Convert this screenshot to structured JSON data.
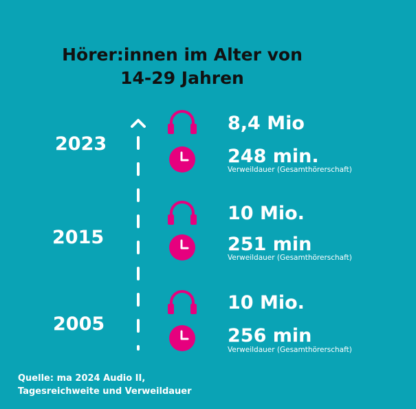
{
  "title": {
    "line1": "Hörer:innen im Alter von",
    "line2": "14-29 Jahren"
  },
  "colors": {
    "background": "#0aa3b5",
    "accent": "#e6007e",
    "text": "#ffffff",
    "title": "#111111"
  },
  "icons": {
    "listeners": "headphones-icon",
    "duration": "clock-icon",
    "timeline": "chevron-up-icon"
  },
  "entries": [
    {
      "year": "2023",
      "listeners": "8,4 Mio",
      "duration": "248 min.",
      "note": "Verweildauer (Gesamthörerschaft)"
    },
    {
      "year": "2015",
      "listeners": "10 Mio.",
      "duration": "251 min",
      "note": "Verweildauer (Gesamthörerschaft)"
    },
    {
      "year": "2005",
      "listeners": "10 Mio.",
      "duration": "256 min",
      "note": "Verweildauer (Gesamthörerschaft)"
    }
  ],
  "source": {
    "line1": "Quelle: ma 2024 Audio II,",
    "line2": "Tagesreichweite und Verweildauer"
  }
}
